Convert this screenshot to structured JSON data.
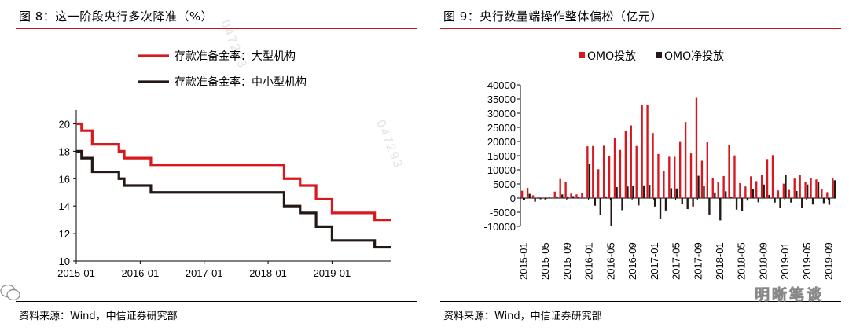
{
  "left": {
    "title": "图 8：这一阶段央行多次降准（%）",
    "source": "资料来源：Wind，中信证券研究部"
  },
  "right": {
    "title": "图 9：央行数量端操作整体偏松（亿元）",
    "source": "资料来源：Wind，中信证券研究部"
  },
  "watermark": "047293",
  "logo_text": "明晰笔谈",
  "colors": {
    "red": "#d7191f",
    "black": "#231815",
    "rule": "#c8141e"
  },
  "chart_data": [
    {
      "type": "line",
      "title": "图 8：这一阶段央行多次降准（%）",
      "xlabel": "",
      "ylabel": "",
      "ylim": [
        10,
        21
      ],
      "yticks": [
        10,
        12,
        14,
        16,
        18,
        20
      ],
      "xticks": [
        "2015-01",
        "2016-01",
        "2017-01",
        "2018-01",
        "2019-01"
      ],
      "legend_position": "top",
      "series": [
        {
          "name": "存款准备金率：大型机构",
          "color": "#d7191f",
          "step_points": [
            [
              "2015-01",
              20
            ],
            [
              "2015-02",
              19.5
            ],
            [
              "2015-04",
              18.5
            ],
            [
              "2015-06",
              18.5
            ],
            [
              "2015-09",
              18
            ],
            [
              "2015-10",
              17.5
            ],
            [
              "2016-03",
              17
            ],
            [
              "2018-04",
              16
            ],
            [
              "2018-07",
              15.5
            ],
            [
              "2018-10",
              14.5
            ],
            [
              "2019-01",
              13.5
            ],
            [
              "2019-09",
              13
            ],
            [
              "2019-12",
              13
            ]
          ]
        },
        {
          "name": "存款准备金率：中小型机构",
          "color": "#231815",
          "step_points": [
            [
              "2015-01",
              18
            ],
            [
              "2015-02",
              17.5
            ],
            [
              "2015-04",
              16.5
            ],
            [
              "2015-06",
              16.5
            ],
            [
              "2015-09",
              16
            ],
            [
              "2015-10",
              15.5
            ],
            [
              "2016-03",
              15
            ],
            [
              "2018-04",
              14
            ],
            [
              "2018-07",
              13.5
            ],
            [
              "2018-10",
              12.5
            ],
            [
              "2019-01",
              11.5
            ],
            [
              "2019-09",
              11
            ],
            [
              "2019-12",
              11
            ]
          ]
        }
      ]
    },
    {
      "type": "bar",
      "title": "图 9：央行数量端操作整体偏松（亿元）",
      "xlabel": "",
      "ylabel": "",
      "ylim": [
        -10000,
        40000
      ],
      "yticks": [
        -10000,
        -5000,
        0,
        5000,
        10000,
        15000,
        20000,
        25000,
        30000,
        35000,
        40000
      ],
      "xticks": [
        "2015-01",
        "2015-05",
        "2015-09",
        "2016-01",
        "2016-05",
        "2016-09",
        "2017-01",
        "2017-05",
        "2017-09",
        "2018-01",
        "2018-05",
        "2018-09",
        "2019-01",
        "2019-05",
        "2019-09"
      ],
      "legend_position": "top",
      "series": [
        {
          "name": "OMO投放",
          "color": "#d7191f",
          "values": [
            2600,
            3600,
            1000,
            300,
            200,
            300,
            2300,
            6800,
            5800,
            1600,
            1300,
            1900,
            18300,
            18400,
            10200,
            18500,
            14800,
            21300,
            17000,
            23800,
            25700,
            18400,
            32900,
            32800,
            23000,
            15600,
            9700,
            14600,
            14600,
            20100,
            26900,
            15800,
            35400,
            13200,
            19900,
            7100,
            5600,
            7800,
            18800,
            15100,
            5300,
            4100,
            7700,
            6000,
            8100,
            13800,
            15200,
            2700,
            5100,
            2900,
            6900,
            8300,
            5600,
            7200,
            6600,
            3300,
            2100,
            7100
          ]
        },
        {
          "name": "OMO净投放",
          "color": "#231815",
          "values": [
            -800,
            1500,
            -1300,
            -400,
            -300,
            -100,
            600,
            1300,
            600,
            700,
            300,
            -100,
            12200,
            -2700,
            -5900,
            600,
            -9800,
            3900,
            -4300,
            4100,
            4400,
            -2600,
            4500,
            4700,
            -3000,
            -7200,
            -4400,
            3500,
            3400,
            -2200,
            -3900,
            -3000,
            7900,
            4300,
            -5800,
            2000,
            -7900,
            2400,
            400,
            -4100,
            -4600,
            -900,
            3200,
            -1500,
            4800,
            1100,
            -1600,
            -3400,
            8200,
            -1600,
            2500,
            -3400,
            4800,
            -2300,
            5600,
            -1800,
            -2400,
            6300
          ]
        }
      ]
    }
  ]
}
